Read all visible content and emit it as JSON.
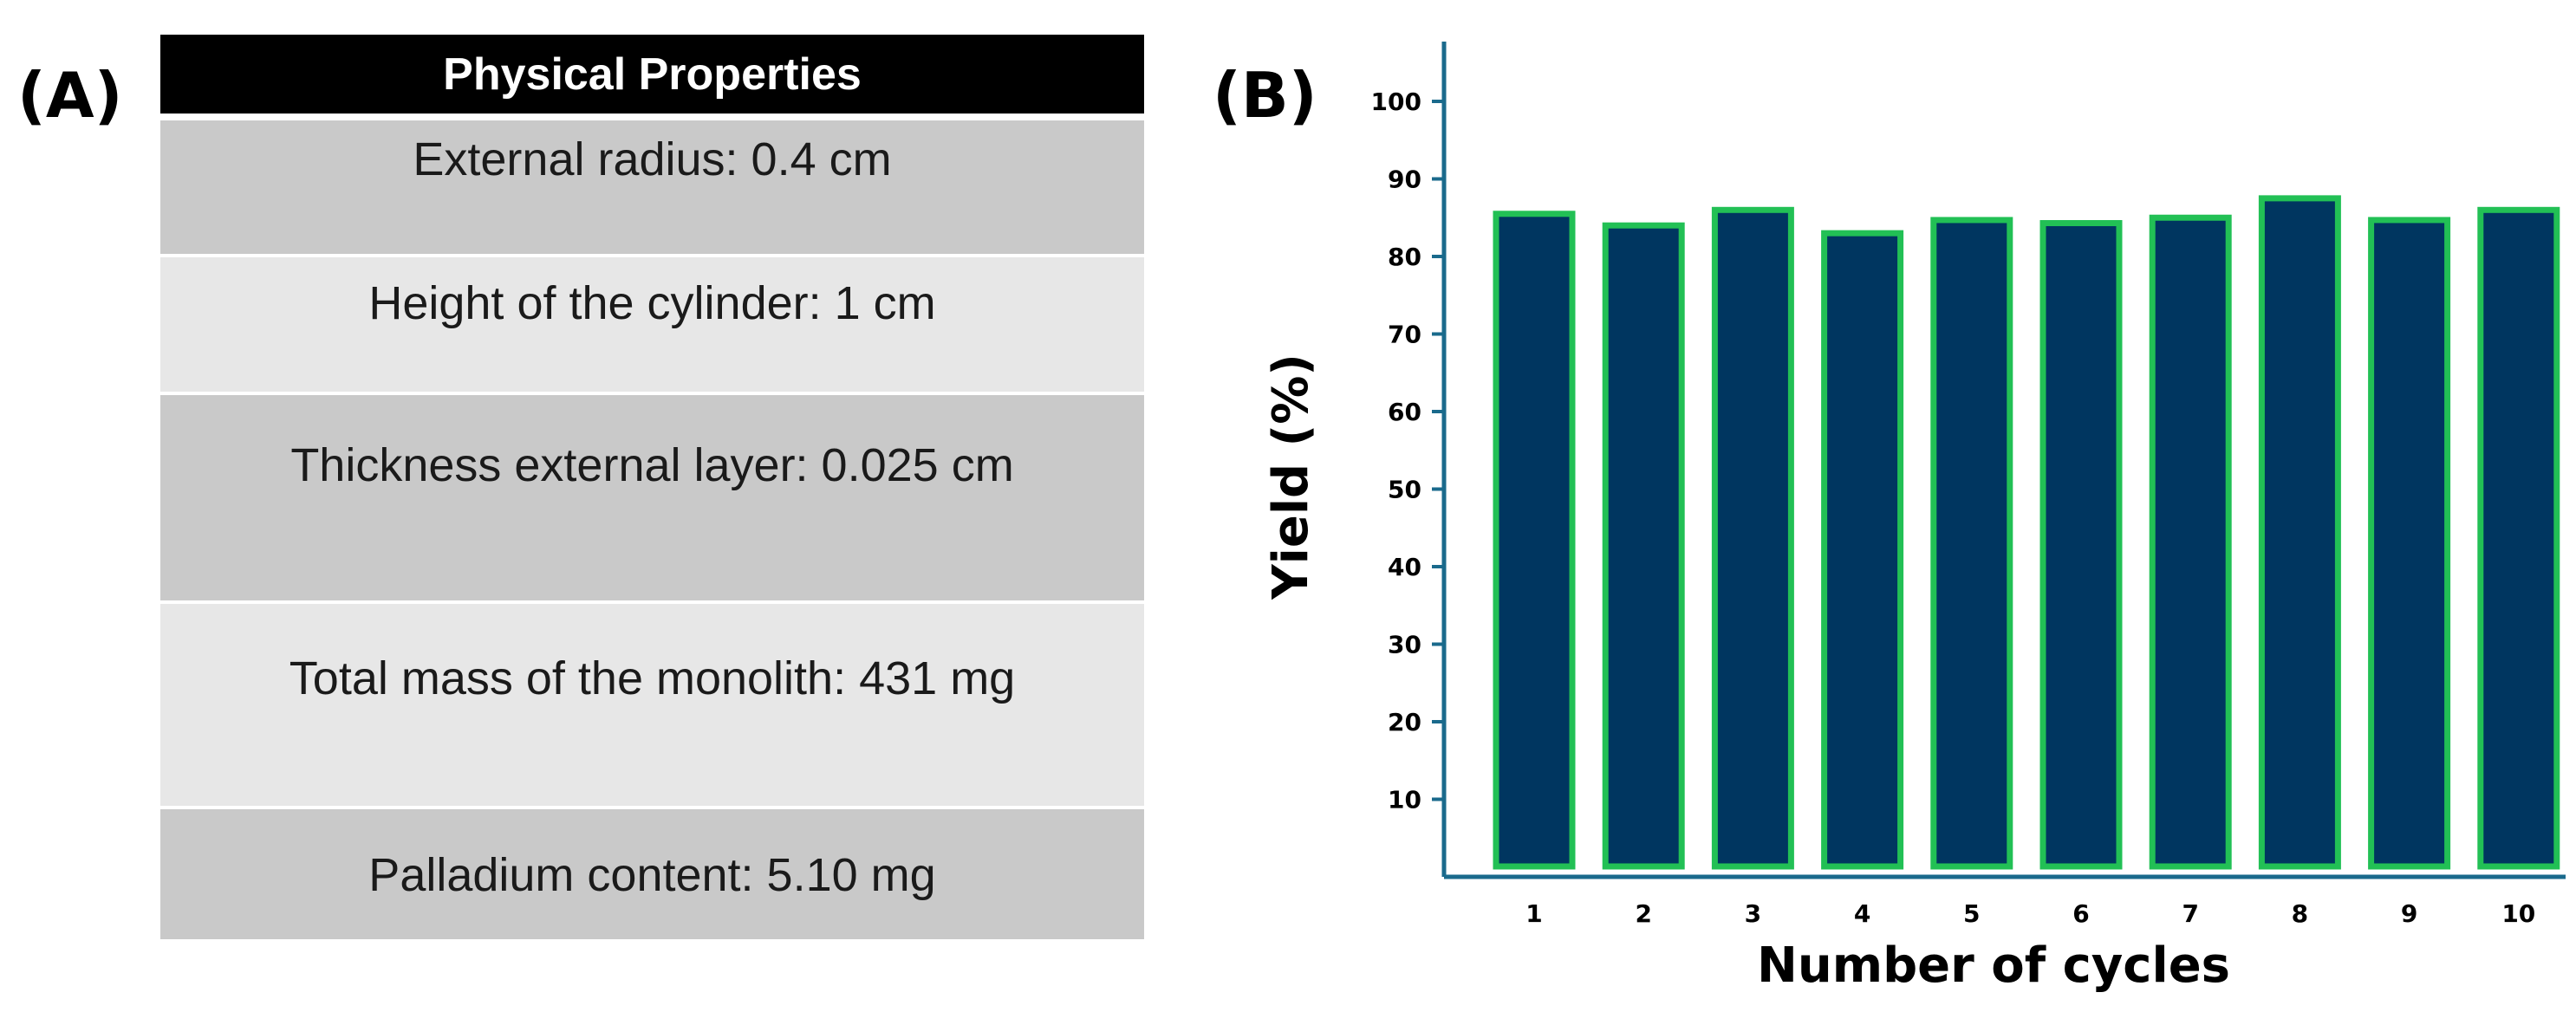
{
  "panel_labels": {
    "a": "(A)",
    "b": "(B)"
  },
  "table": {
    "header": "Physical Properties",
    "rows": [
      "External radius: 0.4 cm",
      "Height of the cylinder: 1 cm",
      "Thickness external layer: 0.025 cm",
      "Total mass of the monolith: 431 mg",
      "Palladium content: 5.10 mg"
    ]
  },
  "colors": {
    "bar_fill": "#003660",
    "bar_stroke": "#22c055",
    "axis": "#1a6a8c",
    "table_header": "#000000",
    "row_dark": "#c9c9c9",
    "row_light": "#e7e7e7"
  },
  "chart_data": {
    "type": "bar",
    "categories": [
      "1",
      "2",
      "3",
      "4",
      "5",
      "6",
      "7",
      "8",
      "9",
      "10"
    ],
    "values": [
      85.5,
      84,
      86,
      83,
      84.7,
      84.3,
      85,
      87.5,
      84.7,
      86
    ],
    "xlabel": "Number of cycles",
    "ylabel": "Yield (%)",
    "ylim": [
      0,
      100
    ],
    "yticks": [
      10,
      20,
      30,
      40,
      50,
      60,
      70,
      80,
      90,
      100
    ],
    "grid": false,
    "legend": "none"
  }
}
